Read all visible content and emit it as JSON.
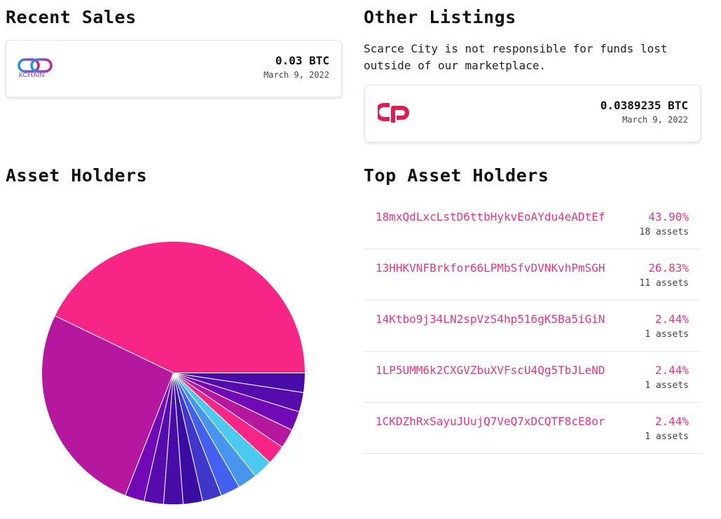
{
  "recent_sales": {
    "title": "Recent Sales",
    "items": [
      {
        "logo_text": "XCHAIN",
        "logo_icon": "xchain-logo-icon",
        "price": "0.03 BTC",
        "date": "March 9, 2022"
      }
    ]
  },
  "other_listings": {
    "title": "Other Listings",
    "note": "Scarce City is not responsible for funds lost outside of our marketplace.",
    "items": [
      {
        "logo_icon": "counterparty-logo-icon",
        "price": "0.0389235 BTC",
        "date": "March 9, 2022"
      }
    ]
  },
  "asset_holders": {
    "title": "Asset Holders"
  },
  "top_asset_holders": {
    "title": "Top Asset Holders",
    "rows": [
      {
        "address": "18mxQdLxcLstD6ttbHykvEoAYdu4eADtEf",
        "percent": "43.90%",
        "assets": "18 assets"
      },
      {
        "address": "13HHKVNFBrkfor66LPMbSfvDVNKvhPmSGH",
        "percent": "26.83%",
        "assets": "11 assets"
      },
      {
        "address": "14Ktbo9j34LN2spVzS4hp516gK5Ba5iGiN",
        "percent": "2.44%",
        "assets": "1 assets"
      },
      {
        "address": "1LP5UMM6k2CXGVZbuXVFscU4Qg5TbJLeND",
        "percent": "2.44%",
        "assets": "1 assets"
      },
      {
        "address": "1CKDZhRxSayuJUujQ7VeQ7xDCQTF8cE8or",
        "percent": "2.44%",
        "assets": "1 assets"
      }
    ]
  },
  "chart_data": {
    "type": "pie",
    "values": [
      43.9,
      26.83,
      2.44,
      2.44,
      2.44,
      2.44,
      2.44,
      2.44,
      2.44,
      2.44,
      2.44,
      2.44,
      2.44,
      2.44,
      2.44
    ],
    "colors": [
      "#f72585",
      "#b5179e",
      "#7209b7",
      "#560bad",
      "#480ca8",
      "#3a0ca3",
      "#3f37c9",
      "#4361ee",
      "#4895ef",
      "#4cc9f0",
      "#f72585",
      "#b5179e",
      "#7209b7",
      "#560bad",
      "#480ca8"
    ],
    "start_angle_deg": 0,
    "direction": "counterclockwise"
  }
}
